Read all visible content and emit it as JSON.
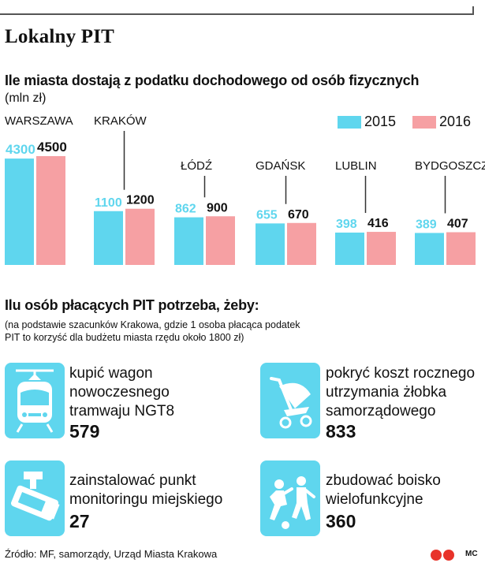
{
  "header": {
    "title": "Lokalny PIT"
  },
  "chart_data": {
    "type": "bar",
    "title": "Ile miasta dostają z podatku dochodowego od osób fizycznych",
    "unit": "(mln zł)",
    "categories": [
      "WARSZAWA",
      "KRAKÓW",
      "ŁÓDŹ",
      "GDAŃSK",
      "LUBLIN",
      "BYDGOSZCZ"
    ],
    "series": [
      {
        "name": "2015",
        "color": "#5fd6ee",
        "values": [
          4300,
          1100,
          862,
          655,
          398,
          389
        ]
      },
      {
        "name": "2016",
        "color": "#f6a0a3",
        "values": [
          4500,
          1200,
          900,
          670,
          416,
          407
        ]
      }
    ],
    "value_labels": [
      [
        "4300",
        "1100",
        "862",
        "655",
        "398",
        "389"
      ],
      [
        "4500",
        "1200",
        "900",
        "670",
        "416",
        "407"
      ]
    ],
    "ylim": [
      0,
      4500
    ]
  },
  "section2": {
    "title": "Ilu osób płacących PIT potrzeba, żeby:",
    "note_line1": "(na podstawie szacunków Krakowa, gdzie 1 osoba płacąca podatek",
    "note_line2": "PIT to korzyść dla budżetu miasta rzędu około 1800 zł)",
    "items": [
      {
        "icon": "tram-icon",
        "lines": [
          "kupić wagon",
          "nowoczesnego",
          "tramwaju NGT8"
        ],
        "value": "579"
      },
      {
        "icon": "stroller-icon",
        "lines": [
          "pokryć koszt rocznego",
          "utrzymania żłobka",
          "samorządowego"
        ],
        "value": "833"
      },
      {
        "icon": "cctv-camera-icon",
        "lines": [
          "zainstalować punkt",
          "monitoringu miejskiego"
        ],
        "value": "27"
      },
      {
        "icon": "football-players-icon",
        "lines": [
          "zbudować boisko",
          "wielofunkcyjne"
        ],
        "value": "360"
      }
    ]
  },
  "footer": {
    "source": "Źródło: MF, samorządy, Urząd Miasta Krakowa",
    "author": "MC",
    "logo_icon": "publisher-logo-icon"
  }
}
